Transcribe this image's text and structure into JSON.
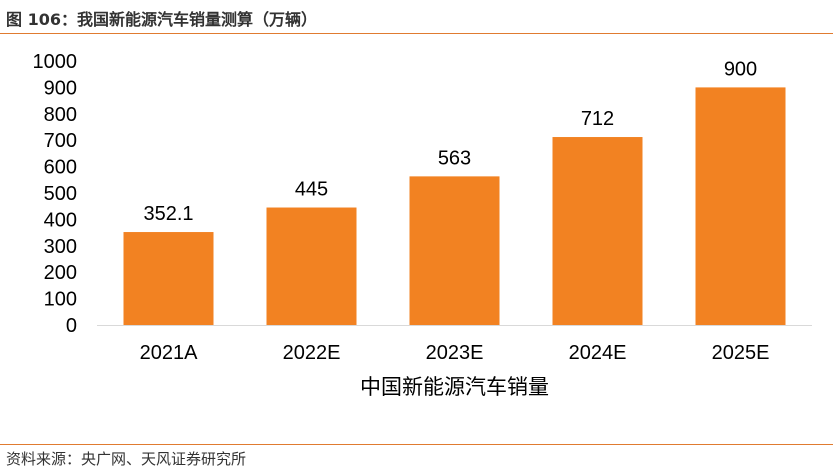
{
  "figure": {
    "caption": "图 106：我国新能源汽车销量测算（万辆）",
    "source": "资料来源：央广网、天风证券研究所"
  },
  "chart_data": {
    "type": "bar",
    "title": "",
    "xlabel": "中国新能源汽车销量",
    "ylabel": "",
    "categories": [
      "2021A",
      "2022E",
      "2023E",
      "2024E",
      "2025E"
    ],
    "values": [
      352.1,
      445,
      563,
      712,
      900
    ],
    "value_labels": [
      "352.1",
      "445",
      "563",
      "712",
      "900"
    ],
    "ylim": [
      0,
      1000
    ],
    "yticks": [
      "0",
      "100",
      "200",
      "300",
      "400",
      "500",
      "600",
      "700",
      "800",
      "900",
      "1000"
    ],
    "grid": false,
    "legend": "none",
    "bar_color": "#f28222",
    "axis_color": "#d9d9d9",
    "text_color": "#000000"
  }
}
